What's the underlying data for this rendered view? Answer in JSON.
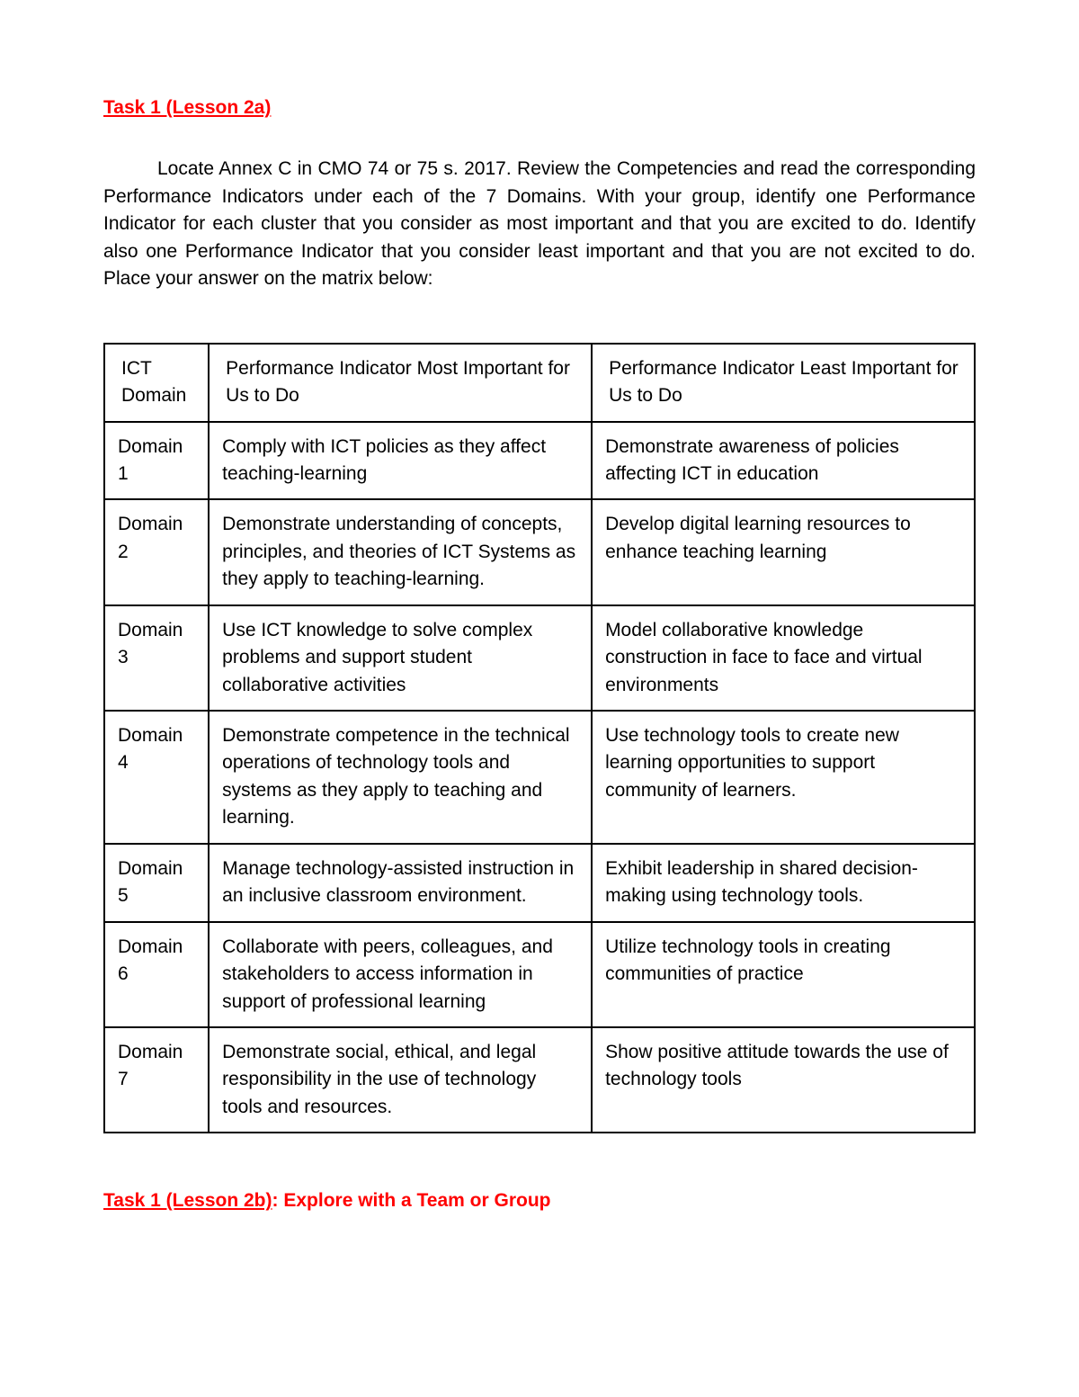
{
  "task1a_heading": "Task 1 (Lesson 2a)",
  "instructions": "Locate Annex C in CMO 74 or 75 s. 2017. Review the Competencies and read the corresponding Performance Indicators under each of the 7 Domains.  With your group, identify one Performance Indicator for each cluster that you consider as most important and that you are excited to do. Identify also one Performance Indicator that you consider least important and that you are not excited to do. Place your answer on the matrix below:",
  "table": {
    "columns": [
      "ICT Domain",
      "Performance Indicator Most Important for Us to Do",
      "Performance Indicator Least Important for Us to Do"
    ],
    "rows": [
      [
        "Domain 1",
        "Comply with ICT policies as they affect teaching-learning",
        "Demonstrate awareness of policies affecting ICT in education"
      ],
      [
        "Domain 2",
        "Demonstrate understanding of concepts, principles, and theories of ICT Systems as they apply to teaching-learning.",
        "Develop digital learning resources to enhance teaching learning"
      ],
      [
        "Domain 3",
        "Use ICT knowledge to solve complex problems and support student collaborative activities",
        "Model collaborative knowledge construction in face to face and virtual environments"
      ],
      [
        "Domain 4",
        "Demonstrate competence in the technical operations of technology tools and systems as they apply to teaching and learning.",
        "Use technology tools to create new learning opportunities to support community of learners."
      ],
      [
        "Domain 5",
        "Manage technology-assisted instruction in an inclusive classroom environment.",
        "Exhibit leadership in shared decision-making using technology tools."
      ],
      [
        "Domain 6",
        "Collaborate with peers, colleagues, and stakeholders to access information in support of professional learning",
        "Utilize technology tools in creating communities of practice"
      ],
      [
        "Domain 7",
        "Demonstrate social, ethical, and legal responsibility in the use of technology tools and resources.",
        "Show positive attitude towards the use of technology tools"
      ]
    ]
  },
  "task1b_prefix": "Task 1 (Lesson 2b)",
  "task1b_suffix": ": Explore with a Team or Group"
}
